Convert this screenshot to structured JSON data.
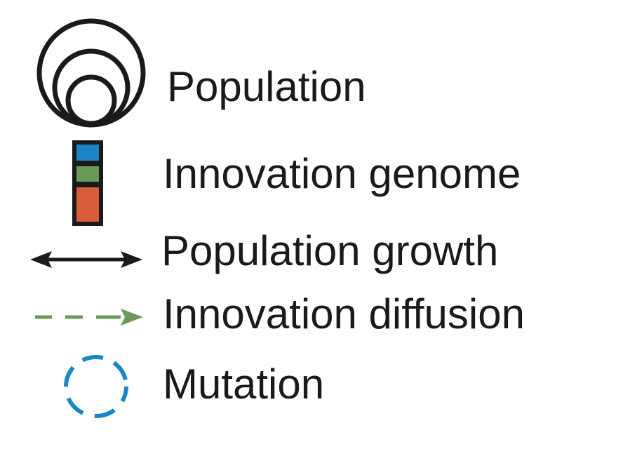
{
  "legend": {
    "items": [
      {
        "id": "population",
        "label": "Population",
        "icon": "nested-circles-icon"
      },
      {
        "id": "genome",
        "label": "Innovation genome",
        "icon": "stacked-blocks-icon"
      },
      {
        "id": "growth",
        "label": "Population growth",
        "icon": "double-arrow-icon"
      },
      {
        "id": "diffusion",
        "label": "Innovation diffusion",
        "icon": "dashed-arrow-icon"
      },
      {
        "id": "mutation",
        "label": "Mutation",
        "icon": "dashed-circle-icon"
      }
    ]
  },
  "colors": {
    "stroke": "#1a1a1a",
    "genome_blue": "#1a86c8",
    "genome_green": "#6a9a57",
    "genome_orange": "#d65c3a",
    "diffusion_green": "#6a9a57",
    "mutation_blue": "#1a86c8"
  }
}
